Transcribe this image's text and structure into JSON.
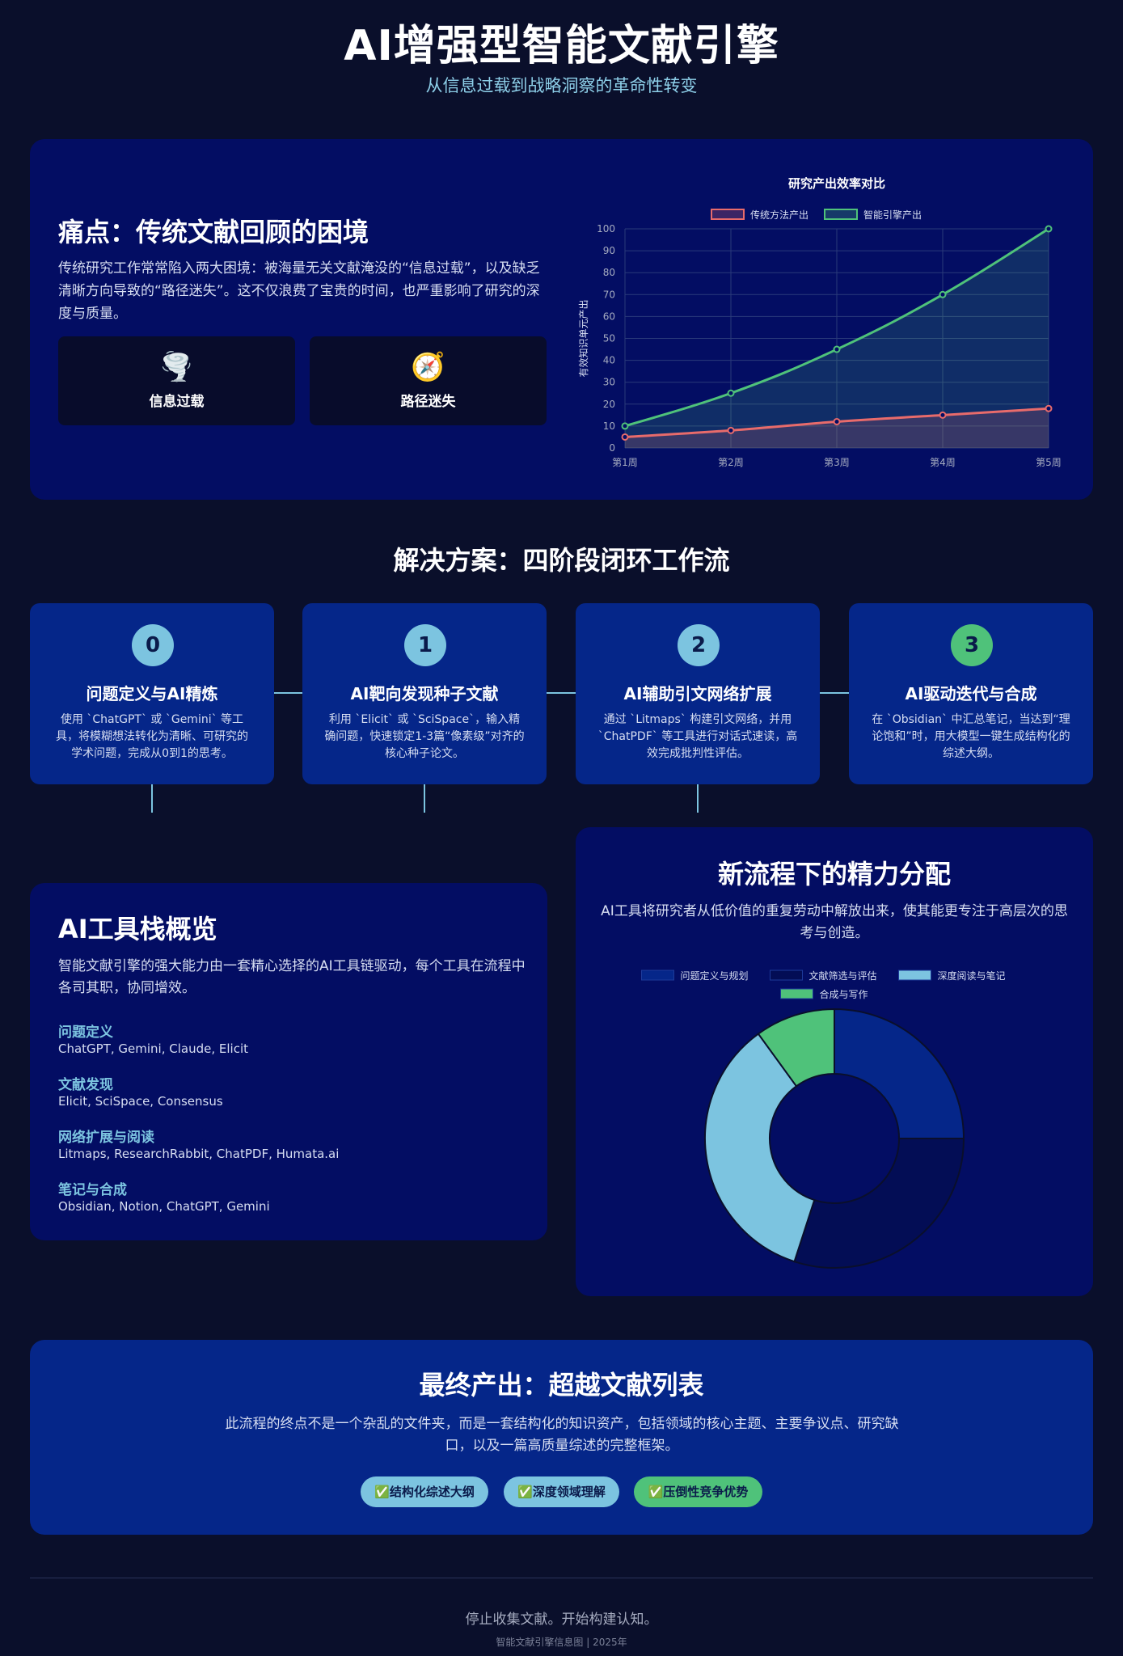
{
  "header": {
    "title": "AI增强型智能文献引擎",
    "subtitle": "从信息过载到战略洞察的革命性转变"
  },
  "pain": {
    "title": "痛点：传统文献回顾的困境",
    "text": "传统研究工作常常陷入两大困境：被海量无关文献淹没的“信息过载”，以及缺乏清晰方向导致的“路径迷失”。这不仅浪费了宝贵的时间，也严重影响了研究的深度与质量。",
    "boxes": [
      {
        "icon": "🌪️",
        "icon_name": "tornado-icon",
        "label": "信息过载"
      },
      {
        "icon": "🧭",
        "icon_name": "compass-icon",
        "label": "路径迷失"
      }
    ]
  },
  "line_chart": {
    "type": "line",
    "title": "研究产出效率对比",
    "ylabel": "有效知识单元产出",
    "categories": [
      "第1周",
      "第2周",
      "第3周",
      "第4周",
      "第5周"
    ],
    "ylim": [
      0,
      100
    ],
    "yticks": [
      0,
      10,
      20,
      30,
      40,
      50,
      60,
      70,
      80,
      90,
      100
    ],
    "legend_position": "top",
    "grid": true,
    "series": [
      {
        "name": "传统方法产出",
        "color": "#e86b6b",
        "values": [
          5,
          8,
          12,
          15,
          18
        ]
      },
      {
        "name": "智能引擎产出",
        "color": "#4fc27a",
        "values": [
          10,
          25,
          45,
          70,
          100
        ]
      }
    ]
  },
  "workflow": {
    "title": "解决方案：四阶段闭环工作流",
    "steps": [
      {
        "num": "0",
        "title": "问题定义与AI精炼",
        "desc": "使用 `ChatGPT` 或 `Gemini` 等工具，将模糊想法转化为清晰、可研究的学术问题，完成从0到1的思考。",
        "color": "#7cc4e0"
      },
      {
        "num": "1",
        "title": "AI靶向发现种子文献",
        "desc": "利用 `Elicit` 或 `SciSpace`，输入精确问题，快速锁定1-3篇“像素级”对齐的核心种子论文。",
        "color": "#7cc4e0"
      },
      {
        "num": "2",
        "title": "AI辅助引文网络扩展",
        "desc": "通过 `Litmaps` 构建引文网络，并用 `ChatPDF` 等工具进行对话式速读，高效完成批判性评估。",
        "color": "#7cc4e0"
      },
      {
        "num": "3",
        "title": "AI驱动迭代与合成",
        "desc": "在 `Obsidian` 中汇总笔记，当达到“理论饱和”时，用大模型一键生成结构化的综述大纲。",
        "color": "#4fc27a"
      }
    ]
  },
  "tools": {
    "title": "AI工具栈概览",
    "desc": "智能文献引擎的强大能力由一套精心选择的AI工具链驱动，每个工具在流程中各司其职，协同增效。",
    "groups": [
      {
        "category": "问题定义",
        "list": "ChatGPT, Gemini, Claude, Elicit"
      },
      {
        "category": "文献发现",
        "list": "Elicit, SciSpace, Consensus"
      },
      {
        "category": "网络扩展与阅读",
        "list": "Litmaps, ResearchRabbit, ChatPDF, Humata.ai"
      },
      {
        "category": "笔记与合成",
        "list": "Obsidian, Notion, ChatGPT, Gemini"
      }
    ]
  },
  "energy": {
    "title": "新流程下的精力分配",
    "desc": "AI工具将研究者从低价值的重复劳动中解放出来，使其能更专注于高层次的思考与创造。"
  },
  "chart_data": {
    "type": "pie",
    "variant": "doughnut",
    "legend_position": "top",
    "slices": [
      {
        "label": "问题定义与规划",
        "value": 25,
        "color": "#052689"
      },
      {
        "label": "文献筛选与评估",
        "value": 30,
        "color": "#030d55"
      },
      {
        "label": "深度阅读与笔记",
        "value": 35,
        "color": "#7cc4e0"
      },
      {
        "label": "合成与写作",
        "value": 10,
        "color": "#4fc27a"
      }
    ]
  },
  "final": {
    "title": "最终产出：超越文献列表",
    "desc": "此流程的终点不是一个杂乱的文件夹，而是一套结构化的知识资产，包括领域的核心主题、主要争议点、研究缺口，以及一篇高质量综述的完整框架。",
    "badges": [
      {
        "label": "✅结构化综述大纲",
        "color": "#7cc4e0"
      },
      {
        "label": "✅深度领域理解",
        "color": "#7cc4e0"
      },
      {
        "label": "✅压倒性竞争优势",
        "color": "#4fc27a"
      }
    ]
  },
  "footer": {
    "main": "停止收集文献。开始构建认知。",
    "sub": "智能文献引擎信息图 | 2025年"
  }
}
